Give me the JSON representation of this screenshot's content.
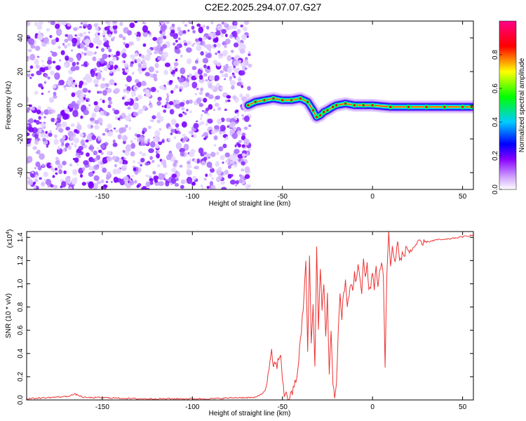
{
  "title": "C2E2.2025.294.07.07.G27",
  "chart_data": [
    {
      "type": "heatmap",
      "name": "spectrogram",
      "xlabel": "Height of straight line (km)",
      "ylabel": "Frequency (Hz)",
      "xlim": [
        -192,
        56
      ],
      "ylim": [
        -50,
        50
      ],
      "xticks": [
        -150,
        -100,
        -50,
        0,
        50
      ],
      "yticks": [
        -40,
        -20,
        0,
        20,
        40
      ],
      "noise_region_km": [
        -192,
        -68
      ],
      "signal_track": {
        "x": [
          -69,
          -65,
          -60,
          -55,
          -50,
          -45,
          -40,
          -36,
          -33,
          -31,
          -29,
          -27,
          -25,
          -22,
          -20,
          -15,
          -10,
          -5,
          0,
          10,
          20,
          30,
          40,
          50,
          55
        ],
        "freq": [
          0,
          2,
          3,
          4,
          3,
          3,
          4,
          2,
          -3,
          -7,
          -6,
          -4,
          -3,
          -1,
          0,
          1,
          0,
          0,
          0,
          -1,
          -1,
          -1,
          -1,
          -1,
          -1
        ]
      },
      "colorbar": {
        "label": "Normalized spectral amplitude",
        "range": [
          0.0,
          1.0
        ],
        "ticks": [
          0.0,
          0.2,
          0.4,
          0.6,
          0.8
        ],
        "colors": [
          "#ffffff",
          "#8800ff",
          "#0000ff",
          "#00ffff",
          "#00ff00",
          "#ffff00",
          "#ff0000",
          "#ff0088"
        ]
      }
    },
    {
      "type": "line",
      "name": "snr",
      "xlabel": "Height of straight line (km)",
      "ylabel": "SNR (10 * v/v)",
      "y_multiplier_label": "(x10",
      "y_multiplier_exp": "4",
      "xlim": [
        -192,
        56
      ],
      "ylim": [
        0,
        1.45
      ],
      "xticks": [
        -150,
        -100,
        -50,
        0,
        50
      ],
      "yticks": [
        0.0,
        0.2,
        0.4,
        0.6,
        0.8,
        1.0,
        1.2,
        1.4
      ],
      "color": "#ee3333",
      "series": [
        {
          "name": "SNR",
          "x": [
            -192,
            -180,
            -170,
            -165,
            -160,
            -150,
            -130,
            -110,
            -90,
            -75,
            -65,
            -60,
            -58,
            -56,
            -55,
            -53,
            -51,
            -50,
            -49,
            -47,
            -45,
            -42,
            -40,
            -38,
            -37,
            -36,
            -35,
            -34,
            -33,
            -32,
            -31,
            -30,
            -29,
            -28,
            -27,
            -26,
            -25,
            -24,
            -23,
            -22,
            -21,
            -20,
            -19,
            -18,
            -17,
            -16,
            -15,
            -14,
            -13,
            -12,
            -11,
            -10,
            -9,
            -8,
            -7,
            -6,
            -5,
            -4,
            -3,
            -2,
            -1,
            0,
            1,
            2,
            3,
            4,
            5,
            6,
            7,
            8,
            9,
            10,
            11,
            12,
            13,
            14,
            15,
            17,
            19,
            21,
            23,
            25,
            27,
            30,
            33,
            36,
            40,
            44,
            48,
            52,
            56
          ],
          "y": [
            0.01,
            0.02,
            0.03,
            0.05,
            0.02,
            0.02,
            0.01,
            0.01,
            0.01,
            0.02,
            0.02,
            0.07,
            0.2,
            0.4,
            0.3,
            0.3,
            0.4,
            0.2,
            0.05,
            0.02,
            0.04,
            0.2,
            0.5,
            0.9,
            1.2,
            0.4,
            1.25,
            0.5,
            0.8,
            0.3,
            1.3,
            0.6,
            1.15,
            0.8,
            1.0,
            0.55,
            0.9,
            0.2,
            0.6,
            0.1,
            0.05,
            0.15,
            0.6,
            0.9,
            0.7,
            0.95,
            1.0,
            0.8,
            0.9,
            1.0,
            0.95,
            1.1,
            1.0,
            1.2,
            1.05,
            0.9,
            1.2,
            1.05,
            1.15,
            0.95,
            1.0,
            1.1,
            0.95,
            1.15,
            1.0,
            1.1,
            1.2,
            1.05,
            0.3,
            1.1,
            1.45,
            1.15,
            1.3,
            1.2,
            1.25,
            1.35,
            1.2,
            1.25,
            1.3,
            1.28,
            1.32,
            1.35,
            1.33,
            1.36,
            1.37,
            1.38,
            1.38,
            1.39,
            1.4,
            1.41,
            1.42
          ]
        }
      ]
    }
  ]
}
